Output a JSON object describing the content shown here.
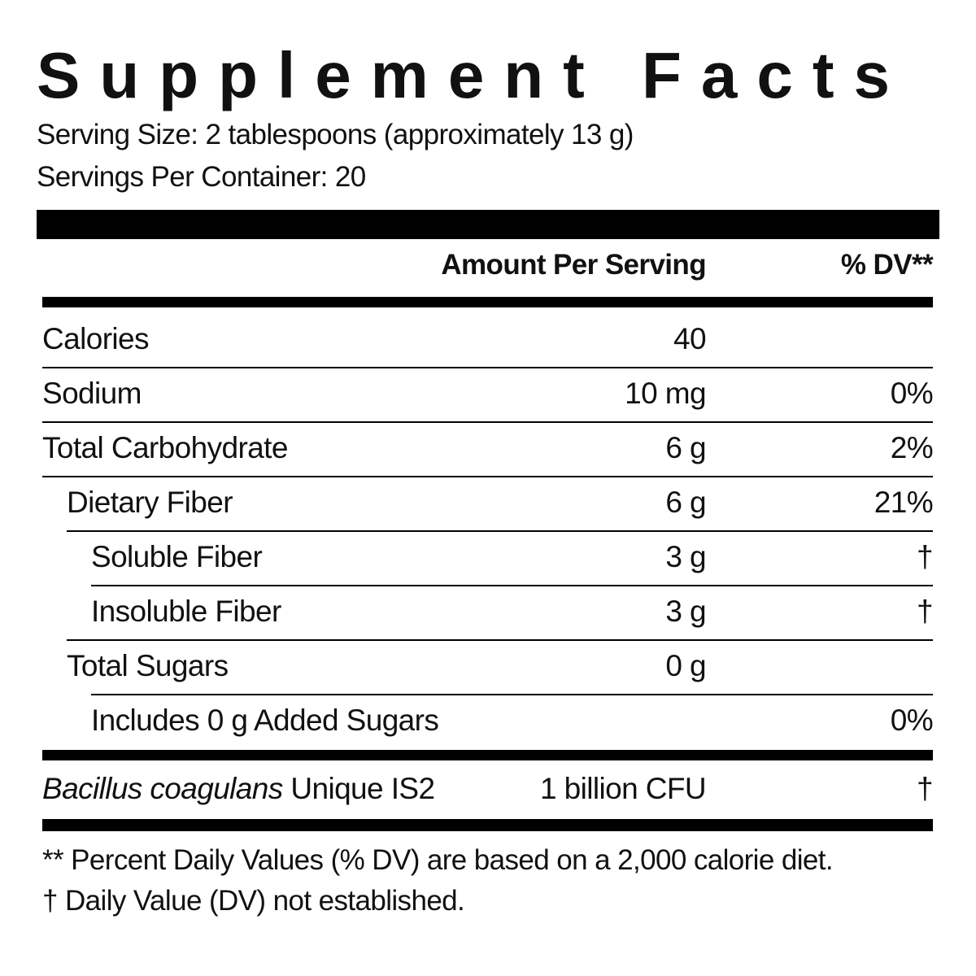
{
  "title": "Supplement Facts",
  "serving_size": "Serving Size: 2 tablespoons (approximately 13 g)",
  "servings_per_container": "Servings Per Container: 20",
  "table": {
    "header": {
      "amount": "Amount Per Serving",
      "dv": "% DV**"
    },
    "rows": [
      {
        "name": "Calories",
        "amount": "40"
      },
      {
        "name": "Sodium",
        "amount": "10 mg",
        "dv": "0%"
      },
      {
        "name": "Total Carbohydrate",
        "amount": "6 g",
        "dv": "2%"
      },
      {
        "name": "Dietary Fiber",
        "amount": "6 g",
        "dv": "21%"
      },
      {
        "name": "Soluble Fiber",
        "amount": "3 g",
        "dv": "†"
      },
      {
        "name": "Insoluble Fiber",
        "amount": "3 g",
        "dv": "†"
      },
      {
        "name": "Total Sugars",
        "amount": "0 g"
      },
      {
        "name": "Includes 0 g Added Sugars",
        "dv": "0%"
      }
    ],
    "probiotic": {
      "name_italic": "Bacillus coagulans",
      "name_rest": "Unique IS2",
      "amount": "1 billion CFU",
      "dv": "†"
    }
  },
  "footnotes": [
    "** Percent Daily Values (% DV) are based on a 2,000 calorie diet.",
    "† Daily Value (DV) not established."
  ]
}
